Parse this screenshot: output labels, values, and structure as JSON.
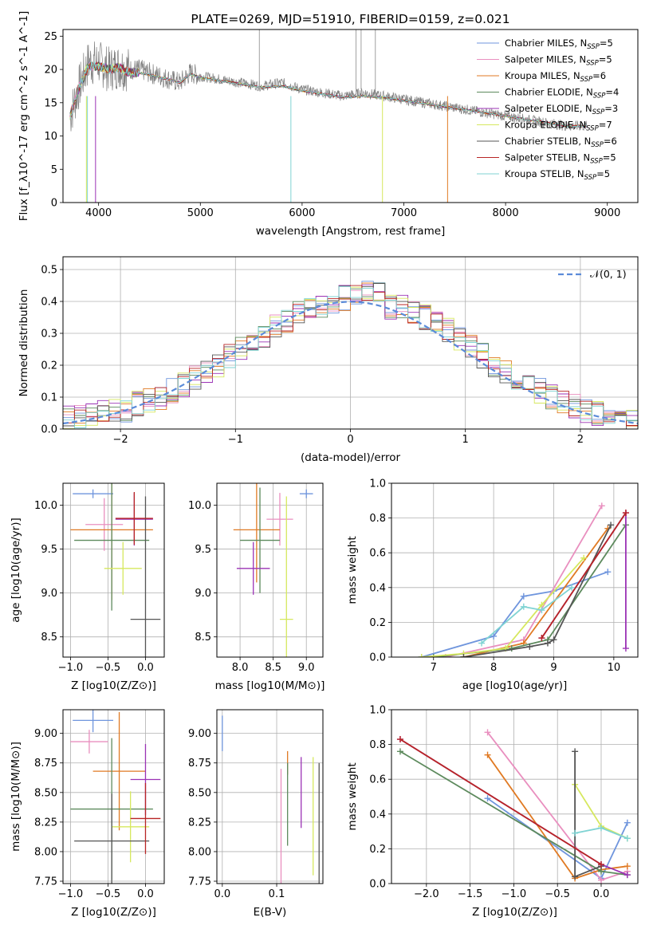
{
  "colors": [
    "#6f95dd",
    "#e98fbf",
    "#e07a23",
    "#5d8a5d",
    "#9b32b5",
    "#d6e85e",
    "#555555",
    "#b82525",
    "#7fd3d3"
  ],
  "chart_data": [
    {
      "id": "spectrum",
      "type": "line",
      "title": "PLATE=0269, MJD=51910, FIBERID=0159, z=0.021",
      "xlabel": "wavelength [Angstrom, rest frame]",
      "ylabel": "Flux [f_λ10^-17 erg cm^-2 s^-1 A^-1]",
      "xlim": [
        3650,
        9300
      ],
      "ylim": [
        0,
        26
      ],
      "xticks": [
        4000,
        5000,
        6000,
        7000,
        8000,
        9000
      ],
      "yticks": [
        0,
        5,
        10,
        15,
        20,
        25
      ],
      "legend_position": "top-right",
      "legend": [
        "Chabrier MILES, N_SSP=5",
        "Salpeter MILES, N_SSP=5",
        "Kroupa MILES, N_SSP=6",
        "Chabrier ELODIE, N_SSP=4",
        "Salpeter ELODIE, N_SSP=3",
        "Kroupa ELODIE, N_SSP=7",
        "Chabrier STELIB, N_SSP=6",
        "Salpeter STELIB, N_SSP=5",
        "Kroupa STELIB, N_SSP=5"
      ],
      "data_curve": {
        "x": [
          3720,
          3800,
          3900,
          4000,
          4100,
          4200,
          4300,
          4400,
          4500,
          4600,
          4700,
          4800,
          4900,
          5000,
          5200,
          5400,
          5600,
          5800,
          6000,
          6200,
          6400,
          6600,
          6800,
          7000,
          7200,
          7400,
          7600,
          7800,
          8000,
          8200,
          8400,
          8600,
          8800
        ],
        "y": [
          13,
          17,
          21,
          21,
          20,
          20.5,
          20,
          20,
          19.5,
          19,
          18.5,
          18,
          19.5,
          19,
          18.5,
          18,
          17.5,
          18,
          17,
          16.5,
          16,
          16.5,
          16,
          15.5,
          15,
          14.5,
          14,
          13.5,
          13,
          12.5,
          12,
          11.5,
          11.5
        ]
      },
      "model_curve": {
        "x": [
          3720,
          3800,
          3900,
          4000,
          4100,
          4200,
          4300,
          4400,
          4500,
          4600,
          4700,
          4800,
          4900,
          5000,
          5200,
          5400,
          5600,
          5800,
          6000,
          6200,
          6400,
          6600,
          6800,
          7000,
          7200,
          7400,
          7600,
          7800,
          8000,
          8200,
          8400,
          8600,
          8800
        ],
        "y": [
          13,
          17,
          20.5,
          20.5,
          20,
          20.3,
          19.5,
          19.5,
          19.2,
          18.8,
          18.5,
          18,
          19.3,
          18.8,
          18.3,
          17.8,
          17.3,
          17.5,
          16.8,
          16.3,
          15.8,
          16,
          15.8,
          15.3,
          14.9,
          14.4,
          14,
          13.5,
          13,
          12.5,
          12,
          11.5,
          11.5
        ]
      }
    },
    {
      "id": "residuals",
      "type": "histogram",
      "xlabel": "(data-model)/error",
      "ylabel": "Normed distribution",
      "xlim": [
        -2.5,
        2.5
      ],
      "ylim": [
        0,
        0.54
      ],
      "xticks": [
        -2,
        -1,
        0,
        1,
        2
      ],
      "yticks": [
        0.0,
        0.1,
        0.2,
        0.3,
        0.4,
        0.5
      ],
      "legend": [
        "𝒩(0, 1)"
      ],
      "legend_position": "top-right",
      "bin_edges": [
        -2.5,
        -2.4,
        -2.3,
        -2.2,
        -2.1,
        -2.0,
        -1.9,
        -1.8,
        -1.7,
        -1.6,
        -1.5,
        -1.4,
        -1.3,
        -1.2,
        -1.1,
        -1.0,
        -0.9,
        -0.8,
        -0.7,
        -0.6,
        -0.5,
        -0.4,
        -0.3,
        -0.2,
        -0.1,
        0.0,
        0.1,
        0.2,
        0.3,
        0.4,
        0.5,
        0.6,
        0.7,
        0.8,
        0.9,
        1.0,
        1.1,
        1.2,
        1.3,
        1.4,
        1.5,
        1.6,
        1.7,
        1.8,
        1.9,
        2.0,
        2.1,
        2.2,
        2.3,
        2.4,
        2.5
      ],
      "hist_values": [
        0.04,
        0.04,
        0.05,
        0.05,
        0.06,
        0.06,
        0.08,
        0.09,
        0.1,
        0.12,
        0.14,
        0.16,
        0.18,
        0.2,
        0.23,
        0.25,
        0.27,
        0.29,
        0.32,
        0.34,
        0.36,
        0.38,
        0.39,
        0.4,
        0.41,
        0.43,
        0.44,
        0.42,
        0.38,
        0.38,
        0.37,
        0.35,
        0.34,
        0.31,
        0.28,
        0.26,
        0.23,
        0.2,
        0.18,
        0.16,
        0.14,
        0.12,
        0.1,
        0.08,
        0.07,
        0.06,
        0.05,
        0.04,
        0.03,
        0.03
      ]
    },
    {
      "id": "age-vs-Z",
      "type": "scatter",
      "xlabel": "Z [log10(Z/Z⊙)]",
      "ylabel": "age  [log10(age/yr)]",
      "xlim": [
        -1.1,
        0.25
      ],
      "ylim": [
        8.27,
        10.25
      ],
      "xticks": [
        -1.0,
        -0.5,
        0.0
      ],
      "yticks": [
        8.5,
        9.0,
        9.5,
        10.0
      ],
      "points": [
        {
          "x": -0.7,
          "y": 10.13,
          "xerr": 0.27,
          "yerr": 0.05
        },
        {
          "x": -0.55,
          "y": 9.78,
          "xerr": 0.25,
          "yerr": 0.3
        },
        {
          "x": -0.45,
          "y": 9.72,
          "xerr": 0.55,
          "yerr": 0.8
        },
        {
          "x": -0.45,
          "y": 9.6,
          "xerr": 0.5,
          "yerr": 0.8
        },
        {
          "x": -0.15,
          "y": 9.84,
          "xerr": 0.25,
          "yerr": 0.3
        },
        {
          "x": -0.3,
          "y": 9.28,
          "xerr": 0.25,
          "yerr": 0.3
        },
        {
          "x": 0.0,
          "y": 8.7,
          "xerr": 0.2,
          "yerr": 1.4
        },
        {
          "x": -0.15,
          "y": 9.85,
          "xerr": 0.25,
          "yerr": 0.3
        }
      ]
    },
    {
      "id": "age-vs-mass",
      "type": "scatter",
      "xlabel": "mass [log10(M/M⊙)]",
      "ylabel": "",
      "xlim": [
        7.65,
        9.25
      ],
      "ylim": [
        8.27,
        10.25
      ],
      "xticks": [
        8.0,
        8.5,
        9.0
      ],
      "yticks": [
        8.5,
        9.0,
        9.5,
        10.0
      ],
      "points": [
        {
          "x": 9.0,
          "y": 10.13,
          "xerr": 0.1,
          "yerr": 0.05
        },
        {
          "x": 8.6,
          "y": 9.84,
          "xerr": 0.2,
          "yerr": 0.3
        },
        {
          "x": 8.25,
          "y": 9.72,
          "xerr": 0.35,
          "yerr": 0.6
        },
        {
          "x": 8.3,
          "y": 9.6,
          "xerr": 0.3,
          "yerr": 0.6
        },
        {
          "x": 8.2,
          "y": 9.28,
          "xerr": 0.25,
          "yerr": 0.3
        },
        {
          "x": 8.7,
          "y": 8.7,
          "xerr": 0.1,
          "yerr": 1.4
        }
      ]
    },
    {
      "id": "massweight-vs-age",
      "type": "line",
      "xlabel": "age  [log10(age/yr)]",
      "ylabel": "mass weight",
      "xlim": [
        6.3,
        10.4
      ],
      "ylim": [
        0,
        1.0
      ],
      "xticks": [
        7,
        8,
        9,
        10
      ],
      "yticks": [
        0.0,
        0.2,
        0.4,
        0.6,
        0.8,
        1.0
      ],
      "series": [
        {
          "x": [
            6.8,
            8.0,
            8.5,
            9.0,
            9.9
          ],
          "y": [
            0.0,
            0.12,
            0.35,
            0.38,
            0.49
          ]
        },
        {
          "x": [
            7.2,
            8.5,
            9.8
          ],
          "y": [
            0.0,
            0.1,
            0.87
          ]
        },
        {
          "x": [
            7.5,
            8.5,
            9.9
          ],
          "y": [
            0.0,
            0.08,
            0.74
          ]
        },
        {
          "x": [
            7.0,
            8.3,
            8.9,
            10.2
          ],
          "y": [
            0.0,
            0.05,
            0.1,
            0.76
          ]
        },
        {
          "x": [
            8.8,
            10.2,
            10.2
          ],
          "y": [
            0.11,
            0.83,
            0.05
          ]
        },
        {
          "x": [
            6.8,
            7.5,
            8.2,
            8.8,
            9.5
          ],
          "y": [
            0.0,
            0.02,
            0.05,
            0.3,
            0.57
          ]
        },
        {
          "x": [
            7.5,
            8.6,
            8.9,
            9.0,
            9.95
          ],
          "y": [
            0.0,
            0.06,
            0.08,
            0.1,
            0.76
          ]
        },
        {
          "x": [
            8.8,
            10.2
          ],
          "y": [
            0.11,
            0.83
          ]
        },
        {
          "x": [
            7.8,
            8.5,
            8.8,
            9.3
          ],
          "y": [
            0.08,
            0.29,
            0.27,
            0.4
          ]
        }
      ]
    },
    {
      "id": "mass-vs-Z",
      "type": "scatter",
      "xlabel": "Z [log10(Z/Z⊙)]",
      "ylabel": "mass [log10(M/M⊙)]",
      "xlim": [
        -1.1,
        0.25
      ],
      "ylim": [
        7.73,
        9.2
      ],
      "xticks": [
        -1.0,
        -0.5,
        0.0
      ],
      "yticks": [
        7.75,
        8.0,
        8.25,
        8.5,
        8.75,
        9.0
      ],
      "points": [
        {
          "x": -0.7,
          "y": 9.11,
          "xerr": 0.27,
          "yerr": 0.1
        },
        {
          "x": -0.75,
          "y": 8.93,
          "xerr": 0.25,
          "yerr": 0.1
        },
        {
          "x": -0.35,
          "y": 8.68,
          "xerr": 0.35,
          "yerr": 0.5
        },
        {
          "x": -0.45,
          "y": 8.36,
          "xerr": 0.55,
          "yerr": 0.6
        },
        {
          "x": 0.0,
          "y": 8.61,
          "xerr": 0.2,
          "yerr": 0.3
        },
        {
          "x": -0.2,
          "y": 8.21,
          "xerr": 0.25,
          "yerr": 0.3
        },
        {
          "x": -0.45,
          "y": 8.09,
          "xerr": 0.5,
          "yerr": 0.4
        },
        {
          "x": 0.0,
          "y": 8.28,
          "xerr": 0.2,
          "yerr": 0.3
        }
      ]
    },
    {
      "id": "mass-vs-EBV",
      "type": "scatter",
      "xlabel": "E(B-V)",
      "ylabel": "",
      "xlim": [
        -0.01,
        0.185
      ],
      "ylim": [
        7.73,
        9.2
      ],
      "xticks": [
        0.0,
        0.1
      ],
      "yticks": [
        7.75,
        8.0,
        8.25,
        8.5,
        8.75,
        9.0
      ],
      "points": [
        {
          "x": 0.0,
          "y": 9.0,
          "yerr": 0.15
        },
        {
          "x": 0.108,
          "y": 8.2,
          "yerr": 0.5
        },
        {
          "x": 0.12,
          "y": 8.75,
          "yerr": 0.1
        },
        {
          "x": 0.12,
          "y": 8.4,
          "yerr": 0.35
        },
        {
          "x": 0.145,
          "y": 8.5,
          "yerr": 0.3
        },
        {
          "x": 0.167,
          "y": 8.3,
          "yerr": 0.5
        },
        {
          "x": 0.178,
          "y": 8.2,
          "yerr": 0.55
        }
      ]
    },
    {
      "id": "massweight-vs-Z",
      "type": "line",
      "xlabel": "Z [log10(Z/Z⊙)]",
      "ylabel": "mass weight",
      "xlim": [
        -2.4,
        0.42
      ],
      "ylim": [
        0,
        1.0
      ],
      "xticks": [
        -2.0,
        -1.5,
        -1.0,
        -0.5,
        0.0
      ],
      "yticks": [
        0.0,
        0.2,
        0.4,
        0.6,
        0.8,
        1.0
      ],
      "series": [
        {
          "x": [
            -1.3,
            0.0,
            0.3
          ],
          "y": [
            0.49,
            0.03,
            0.35
          ]
        },
        {
          "x": [
            -1.3,
            0.0,
            0.3
          ],
          "y": [
            0.87,
            0.02,
            0.07
          ]
        },
        {
          "x": [
            -1.3,
            -0.3,
            0.0,
            0.3
          ],
          "y": [
            0.74,
            0.03,
            0.08,
            0.1
          ]
        },
        {
          "x": [
            -2.3,
            0.0,
            0.3
          ],
          "y": [
            0.76,
            0.07,
            0.05
          ]
        },
        {
          "x": [
            -2.3,
            0.0,
            0.3
          ],
          "y": [
            0.83,
            0.11,
            0.05
          ]
        },
        {
          "x": [
            -0.3,
            0.0,
            0.3
          ],
          "y": [
            0.57,
            0.33,
            0.26
          ]
        },
        {
          "x": [
            -0.3,
            -0.3,
            0.0
          ],
          "y": [
            0.76,
            0.04,
            0.1
          ]
        },
        {
          "x": [
            -2.3,
            0.0
          ],
          "y": [
            0.83,
            0.11
          ]
        },
        {
          "x": [
            -0.3,
            0.0,
            0.3
          ],
          "y": [
            0.29,
            0.32,
            0.26
          ]
        }
      ]
    }
  ]
}
